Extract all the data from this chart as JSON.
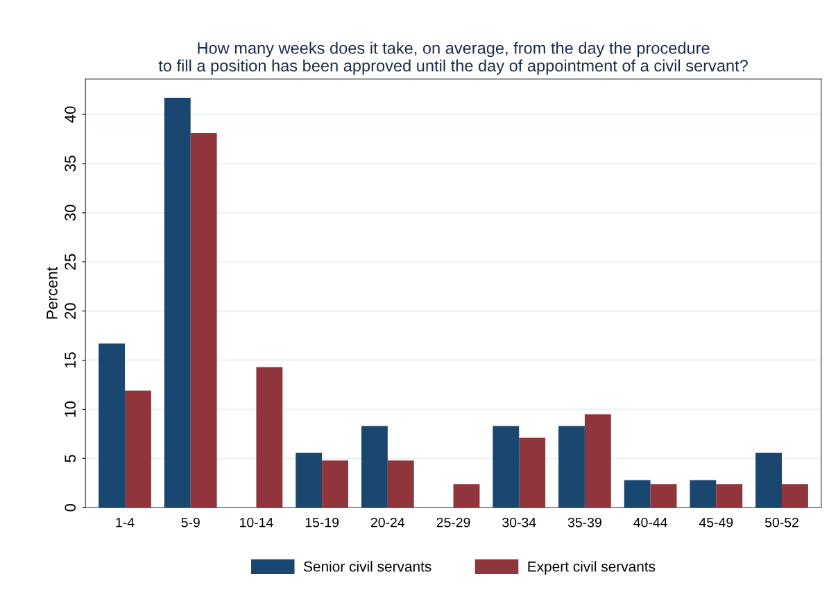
{
  "chart_data": {
    "type": "bar",
    "title": "How many weeks does it take, on average, from the day the procedure\nto fill a position has been approved until the day of appointment of a civil servant?",
    "ylabel": "Percent",
    "categories": [
      "1-4",
      "5-9",
      "10-14",
      "15-19",
      "20-24",
      "25-29",
      "30-34",
      "35-39",
      "40-44",
      "45-49",
      "50-52"
    ],
    "series": [
      {
        "name": "Senior civil servants",
        "color": "#1a476f",
        "values": [
          16.7,
          41.7,
          0,
          5.6,
          8.3,
          0,
          8.3,
          8.3,
          2.8,
          2.8,
          5.6
        ]
      },
      {
        "name": "Expert civil servants",
        "color": "#90353b",
        "values": [
          11.9,
          38.1,
          14.3,
          4.8,
          4.8,
          2.4,
          7.1,
          9.5,
          2.4,
          2.4,
          2.4
        ]
      }
    ],
    "ylim": [
      0,
      43.6
    ],
    "yticks": [
      0,
      5,
      10,
      15,
      20,
      25,
      30,
      35,
      40
    ],
    "grid": "y",
    "legend": "bottom"
  }
}
